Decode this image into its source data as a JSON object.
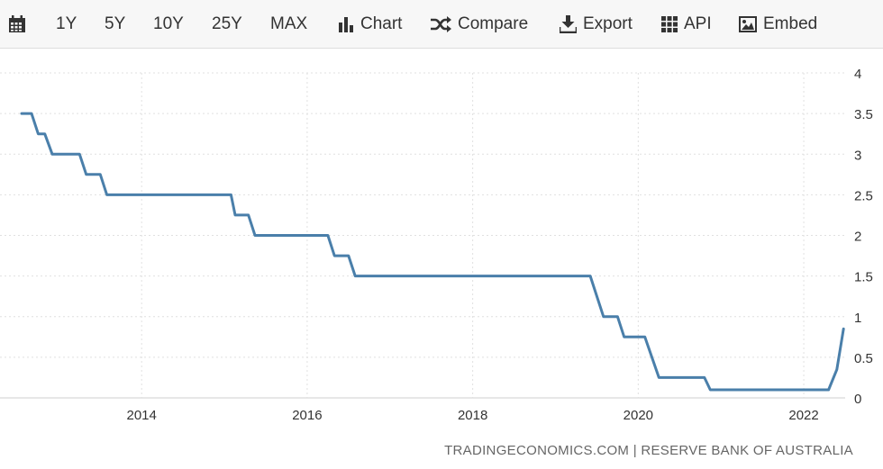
{
  "toolbar": {
    "range_1y": "1Y",
    "range_5y": "5Y",
    "range_10y": "10Y",
    "range_25y": "25Y",
    "range_max": "MAX",
    "chart_label": "Chart",
    "compare_label": "Compare",
    "export_label": "Export",
    "api_label": "API",
    "embed_label": "Embed"
  },
  "source": "TRADINGECONOMICS.COM  |  RESERVE BANK OF AUSTRALIA",
  "colors": {
    "line": "#4a7faa",
    "grid": "#e0e0e0",
    "toolbar_bg": "#f7f7f7"
  },
  "chart_data": {
    "type": "line",
    "title": "",
    "xlabel": "",
    "ylabel": "",
    "xlim": [
      2012.55,
      2022.5
    ],
    "ylim": [
      0,
      4
    ],
    "y_ticks": [
      0,
      0.5,
      1,
      1.5,
      2,
      2.5,
      3,
      3.5,
      4
    ],
    "y_tick_labels": [
      "0",
      "0.5",
      "1",
      "1.5",
      "2",
      "2.5",
      "3",
      "3.5",
      "4"
    ],
    "x_ticks": [
      2014,
      2016,
      2018,
      2020,
      2022
    ],
    "x_tick_labels": [
      "2014",
      "2016",
      "2018",
      "2020",
      "2022"
    ],
    "grid": true,
    "y_axis_side": "right",
    "series": [
      {
        "name": "",
        "points": [
          [
            2012.55,
            3.5
          ],
          [
            2012.67,
            3.5
          ],
          [
            2012.75,
            3.25
          ],
          [
            2012.83,
            3.25
          ],
          [
            2012.92,
            3.0
          ],
          [
            2013.25,
            3.0
          ],
          [
            2013.33,
            2.75
          ],
          [
            2013.5,
            2.75
          ],
          [
            2013.58,
            2.5
          ],
          [
            2015.08,
            2.5
          ],
          [
            2015.13,
            2.25
          ],
          [
            2015.29,
            2.25
          ],
          [
            2015.37,
            2.0
          ],
          [
            2016.25,
            2.0
          ],
          [
            2016.33,
            1.75
          ],
          [
            2016.5,
            1.75
          ],
          [
            2016.58,
            1.5
          ],
          [
            2019.42,
            1.5
          ],
          [
            2019.58,
            1.0
          ],
          [
            2019.75,
            1.0
          ],
          [
            2019.83,
            0.75
          ],
          [
            2020.08,
            0.75
          ],
          [
            2020.25,
            0.25
          ],
          [
            2020.8,
            0.25
          ],
          [
            2020.87,
            0.1
          ],
          [
            2022.3,
            0.1
          ],
          [
            2022.4,
            0.35
          ],
          [
            2022.48,
            0.85
          ]
        ]
      }
    ]
  }
}
